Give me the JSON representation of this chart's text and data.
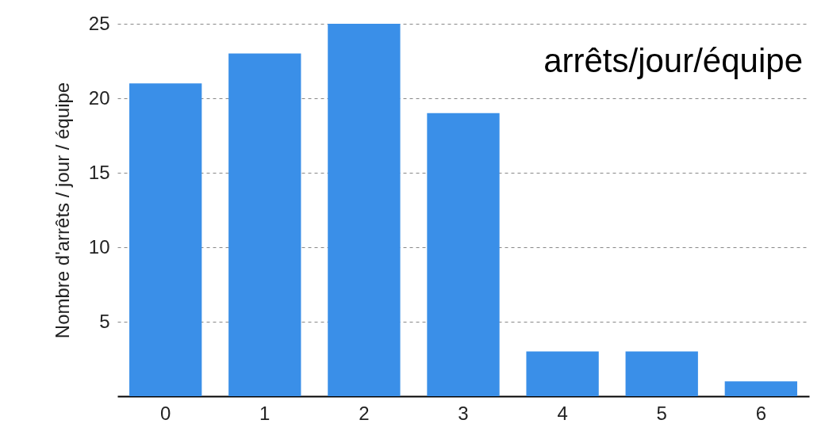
{
  "chart_data": {
    "type": "bar",
    "ylabel": "Nombre d'arrêts / jour / équipe",
    "categories": [
      "0",
      "1",
      "2",
      "3",
      "4",
      "5",
      "6"
    ],
    "values": [
      21,
      23,
      25,
      19,
      3,
      3,
      1
    ],
    "color": "#3a8fe8",
    "ylim": [
      0,
      25
    ],
    "yticks": [
      5,
      10,
      15,
      20,
      25
    ],
    "grid": "y",
    "annotations": [
      "arrêts/jour/équipe"
    ]
  }
}
